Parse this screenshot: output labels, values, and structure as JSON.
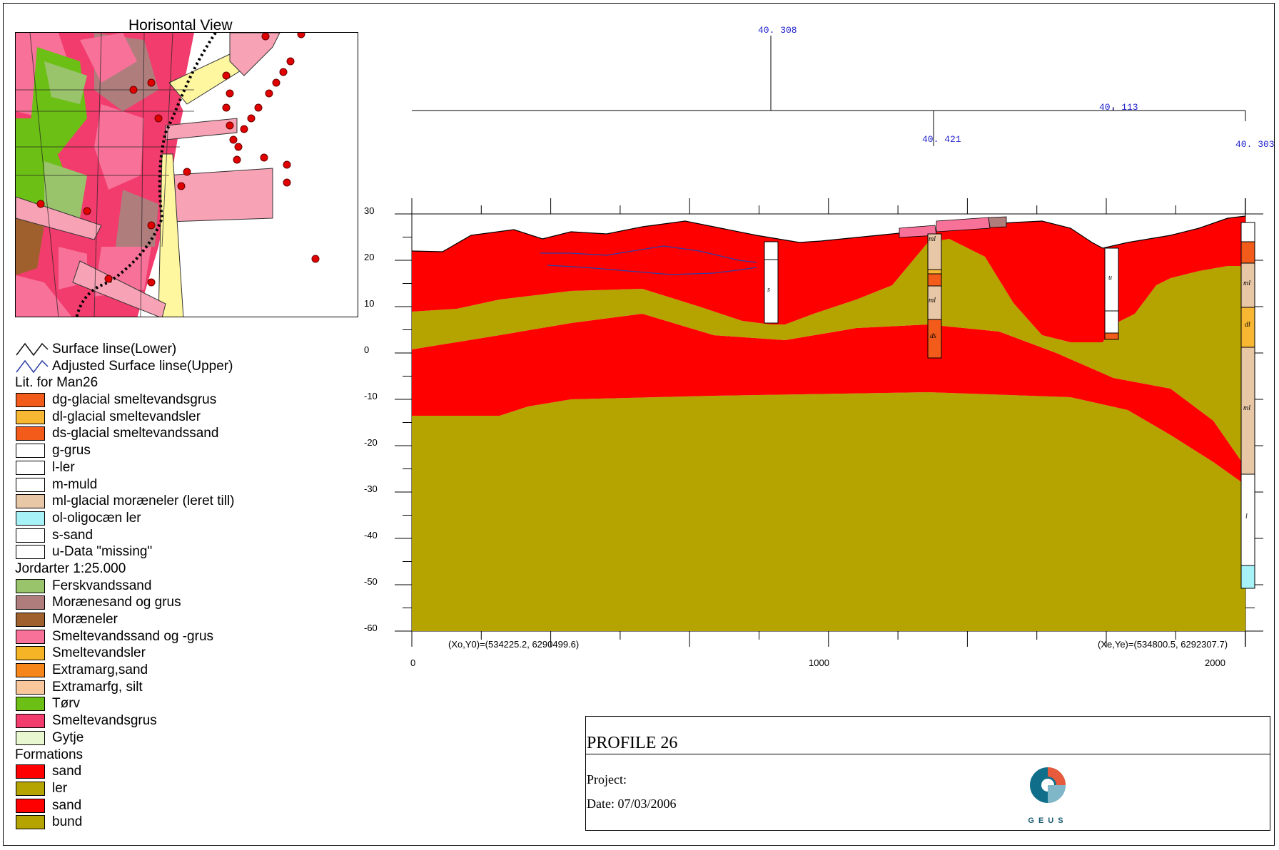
{
  "horizontal_view": {
    "title": "Horisontal View"
  },
  "legend": {
    "surface_lower": "Surface linse(Lower)",
    "surface_upper": "Adjusted Surface linse(Upper)",
    "lit_heading": "Lit. for Man26",
    "lit_items": [
      {
        "label": "dg-glacial smeltevandsgrus",
        "color": "#f25b1a"
      },
      {
        "label": "dl-glacial smeltevandsler",
        "color": "#f7b733"
      },
      {
        "label": "ds-glacial smeltevandssand",
        "color": "#f25b1a"
      },
      {
        "label": "g-grus",
        "color": "#ffffff"
      },
      {
        "label": "l-ler",
        "color": "#ffffff"
      },
      {
        "label": "m-muld",
        "color": "#ffffff"
      },
      {
        "label": "ml-glacial moræneler (leret till)",
        "color": "#e8c7a6"
      },
      {
        "label": "ol-oligocæn ler",
        "color": "#a6f2f7"
      },
      {
        "label": "s-sand",
        "color": "#ffffff"
      },
      {
        "label": "u-Data \"missing\"",
        "color": "#ffffff"
      }
    ],
    "jord_heading": "Jordarter 1:25.000",
    "jord_items": [
      {
        "label": "Ferskvandssand",
        "color": "#9ac46c"
      },
      {
        "label": "Morænesand og grus",
        "color": "#b07d7d"
      },
      {
        "label": "Moræneler",
        "color": "#a0602e"
      },
      {
        "label": "Smeltevandssand og -grus",
        "color": "#f77199"
      },
      {
        "label": "Smeltevandsler",
        "color": "#f5b425"
      },
      {
        "label": "Extramarg,sand",
        "color": "#f7861a"
      },
      {
        "label": "Extramarfg, silt",
        "color": "#f9c79b"
      },
      {
        "label": "Tørv",
        "color": "#6cbf14"
      },
      {
        "label": "Smeltevandsgrus",
        "color": "#f23c6d"
      },
      {
        "label": "Gytje",
        "color": "#e8f7d0"
      }
    ],
    "form_heading": "Formations",
    "form_items": [
      {
        "label": "sand",
        "color": "#ff0000"
      },
      {
        "label": "ler",
        "color": "#b5a300"
      },
      {
        "label": "sand",
        "color": "#ff0000"
      },
      {
        "label": "bund",
        "color": "#b5a300"
      }
    ]
  },
  "profile": {
    "y_ticks": [
      "30",
      "20",
      "10",
      "0",
      "-10",
      "-20",
      "-30",
      "-40",
      "-50",
      "-60"
    ],
    "x_ticks": [
      "0",
      "1000",
      "2000"
    ],
    "start_coord": "(Xo,Y0)=(534225.2, 6290499.6)",
    "end_coord": "(Xe,Ye)=(534800.5, 6292307.7)",
    "well_labels": [
      "40. 308",
      "40. 421",
      "40. 113",
      "40. 303"
    ],
    "well_codes": {
      "w1": "s",
      "w2": [
        "ml",
        "ml",
        "ds"
      ],
      "w3": "u",
      "w4": [
        "ml",
        "dl",
        "ml",
        "l"
      ]
    }
  },
  "title_box": {
    "title": "PROFILE 26",
    "project": "Project:",
    "date": "Date: 07/03/2006",
    "logo_text": "GEUS"
  }
}
